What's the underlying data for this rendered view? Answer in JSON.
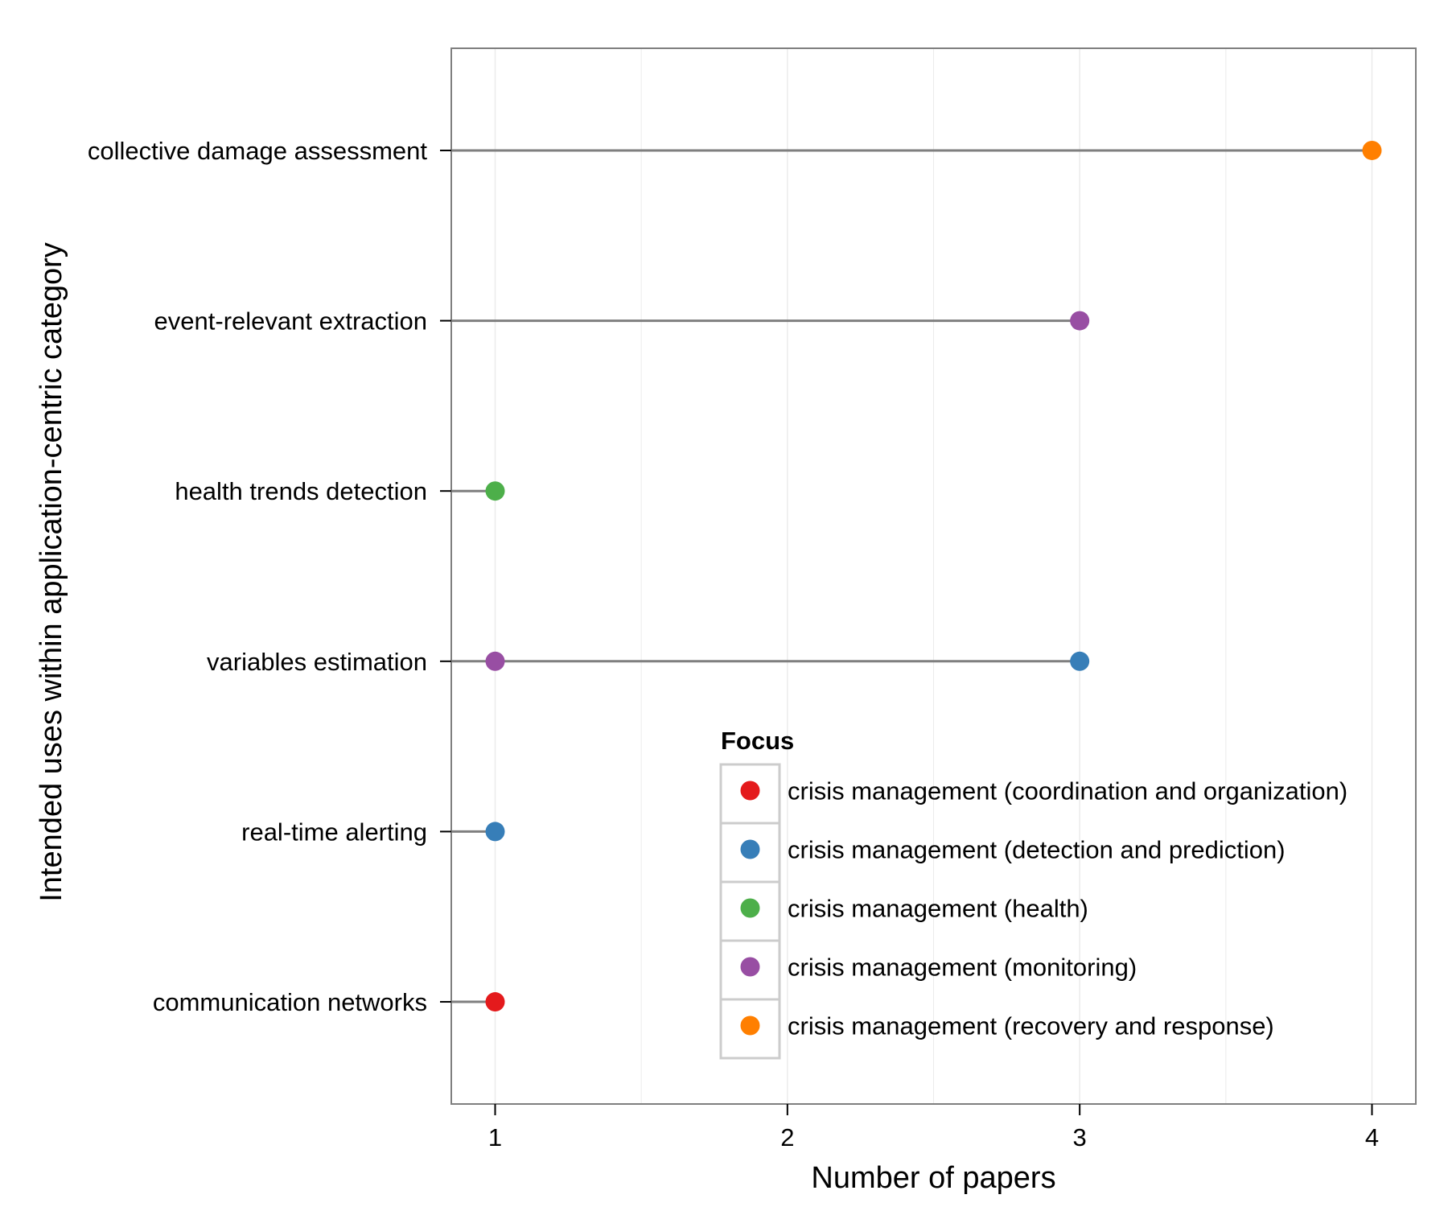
{
  "chart_data": {
    "type": "scatter",
    "title": "",
    "xlabel": "Number of papers",
    "ylabel": "Intended uses within application-centric category",
    "xlim": [
      0.85,
      4.15
    ],
    "x_ticks": [
      1,
      2,
      3,
      4
    ],
    "x_tick_labels": [
      "1",
      "2",
      "3",
      "4"
    ],
    "categories": [
      "communication networks",
      "real-time alerting",
      "variables estimation",
      "health trends detection",
      "event-relevant extraction",
      "collective damage assessment"
    ],
    "grid": true,
    "legend": {
      "title": "Focus",
      "placement": "inside-bottom-right",
      "entries": [
        {
          "label": "crisis management (coordination and organization)",
          "color": "#e41a1c"
        },
        {
          "label": "crisis management (detection and prediction)",
          "color": "#377eb8"
        },
        {
          "label": "crisis management (health)",
          "color": "#4daf4a"
        },
        {
          "label": "crisis management (monitoring)",
          "color": "#984ea3"
        },
        {
          "label": "crisis management (recovery and response)",
          "color": "#ff7f00"
        }
      ]
    },
    "segments": [
      {
        "category": "collective damage assessment",
        "x_max": 4
      },
      {
        "category": "event-relevant extraction",
        "x_max": 3
      },
      {
        "category": "health trends detection",
        "x_max": 1
      },
      {
        "category": "variables estimation",
        "x_max": 3
      },
      {
        "category": "real-time alerting",
        "x_max": 1
      },
      {
        "category": "communication networks",
        "x_max": 1
      }
    ],
    "points": [
      {
        "category": "collective damage assessment",
        "x": 4,
        "focus": "crisis management (recovery and response)"
      },
      {
        "category": "event-relevant extraction",
        "x": 3,
        "focus": "crisis management (monitoring)"
      },
      {
        "category": "health trends detection",
        "x": 1,
        "focus": "crisis management (health)"
      },
      {
        "category": "variables estimation",
        "x": 1,
        "focus": "crisis management (monitoring)"
      },
      {
        "category": "variables estimation",
        "x": 3,
        "focus": "crisis management (detection and prediction)"
      },
      {
        "category": "real-time alerting",
        "x": 1,
        "focus": "crisis management (detection and prediction)"
      },
      {
        "category": "communication networks",
        "x": 1,
        "focus": "crisis management (coordination and organization)"
      }
    ],
    "colors": {
      "segment": "#7f7f7f",
      "panel_border": "#7f7f7f",
      "grid": "#ebebeb"
    }
  }
}
